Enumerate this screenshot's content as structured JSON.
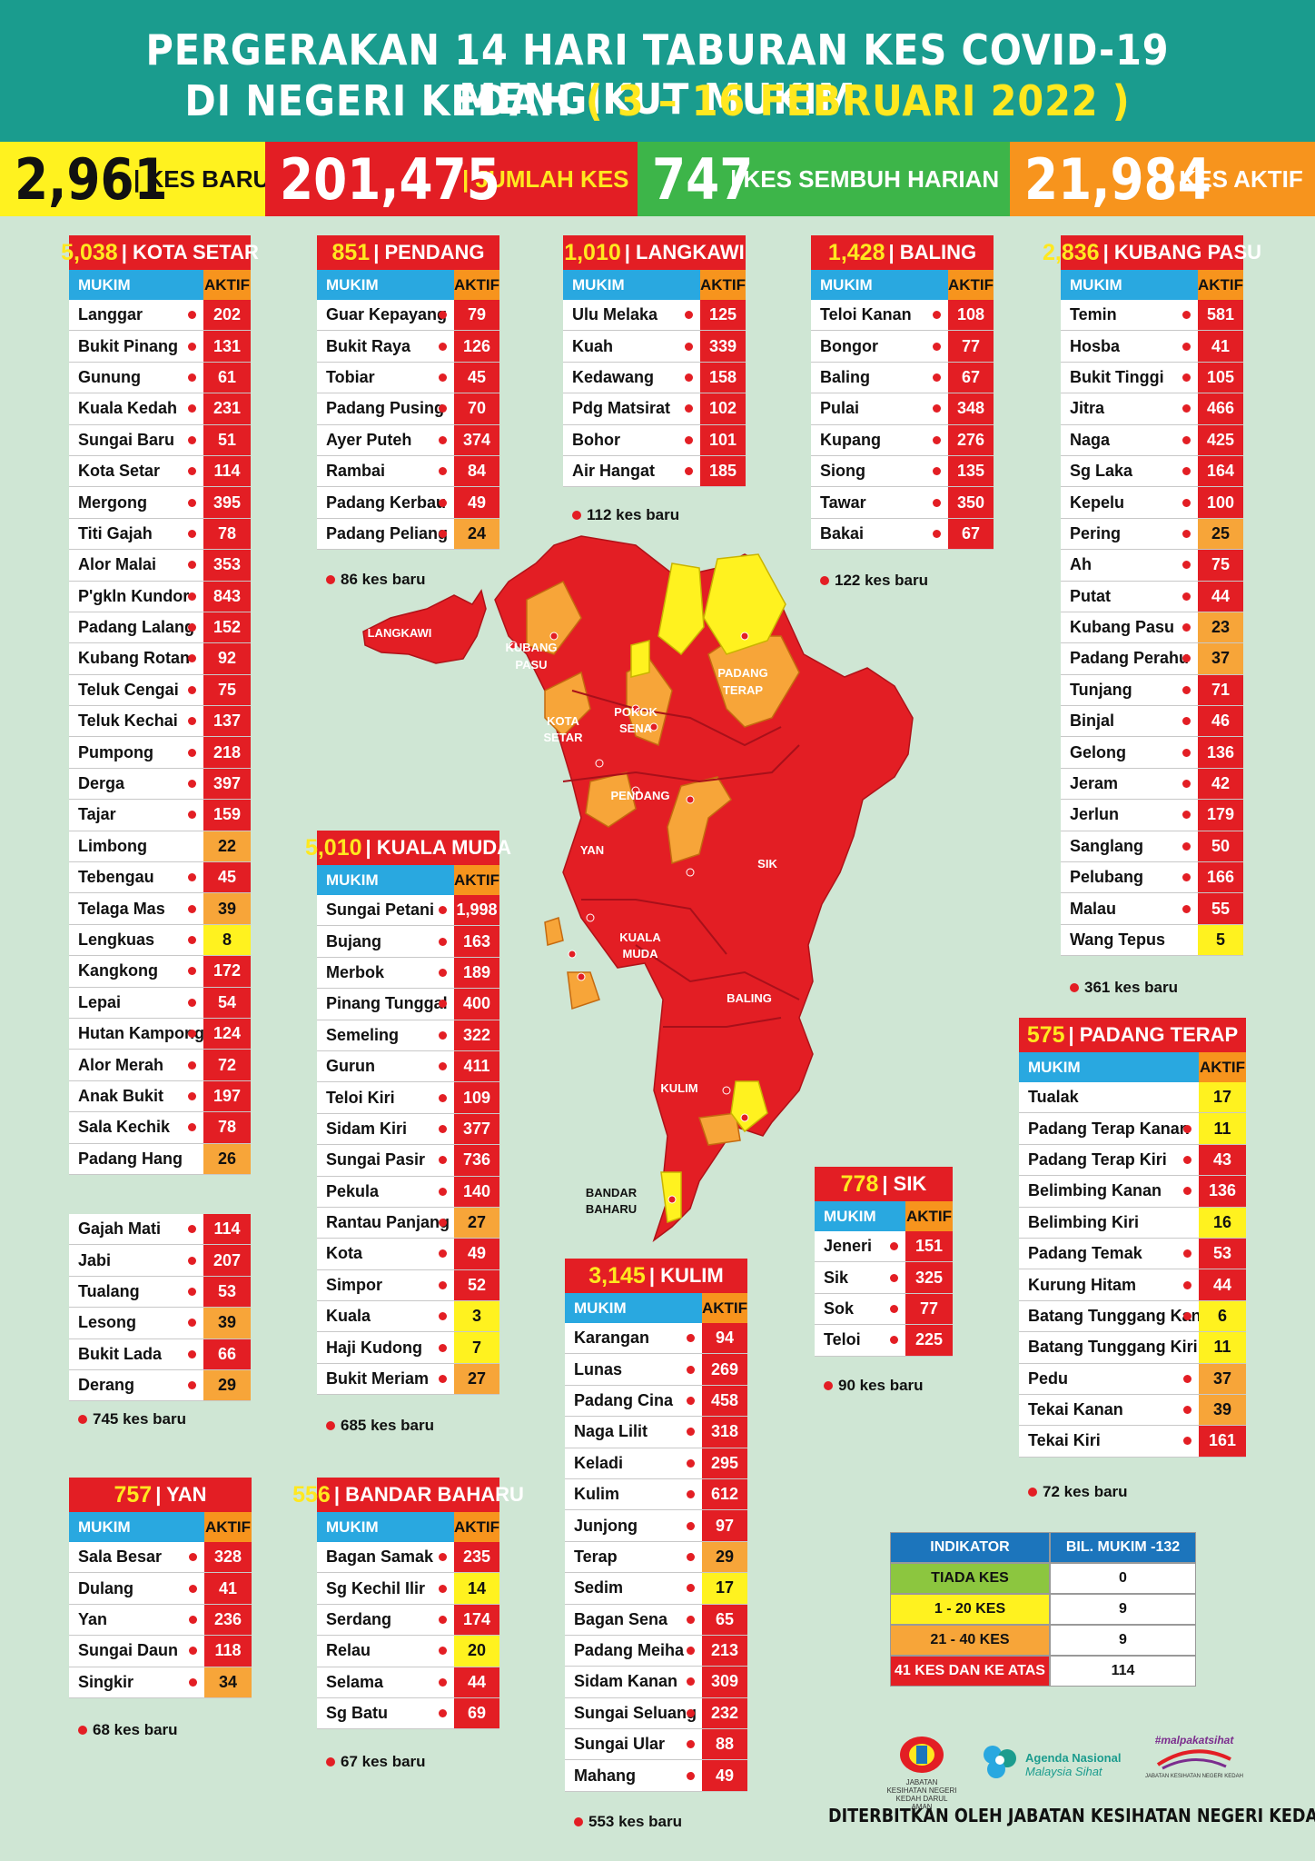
{
  "header": {
    "line1": "PERGERAKAN 14 HARI TABURAN KES COVID-19 MENGIKUT MUKIM",
    "line2_prefix": "DI NEGERI KEDAH",
    "line2_dates": "( 3 – 16 FEBRUARI 2022 )"
  },
  "stats": [
    {
      "value": "2,961",
      "label": "| KES BARU",
      "bg": "#fff21f",
      "fg": "#111111"
    },
    {
      "value": "201,475",
      "label": "| JUMLAH KES",
      "bg": "#e31e24",
      "fg": "#ffffff",
      "lc": "#ffe81f"
    },
    {
      "value": "747",
      "label": "| KES SEMBUH HARIAN",
      "bg": "#3db549",
      "fg": "#ffffff"
    },
    {
      "value": "21,984",
      "label": "| KES AKTIF",
      "bg": "#f7941d",
      "fg": "#ffffff"
    }
  ],
  "col_mukim": "MUKIM",
  "col_aktif": "AKTIF",
  "districts": [
    {
      "id": "kota-setar",
      "total": "5,038",
      "name": "| KOTA SETAR",
      "rows": [
        [
          "Langgar",
          "202",
          "r",
          1
        ],
        [
          "Bukit Pinang",
          "131",
          "r",
          1
        ],
        [
          "Gunung",
          "61",
          "r",
          1
        ],
        [
          "Kuala Kedah",
          "231",
          "r",
          1
        ],
        [
          "Sungai Baru",
          "51",
          "r",
          1
        ],
        [
          "Kota Setar",
          "114",
          "r",
          1
        ],
        [
          "Mergong",
          "395",
          "r",
          1
        ],
        [
          "Titi Gajah",
          "78",
          "r",
          1
        ],
        [
          "Alor Malai",
          "353",
          "r",
          1
        ],
        [
          "P'gkln Kundor",
          "843",
          "r",
          1
        ],
        [
          "Padang Lalang",
          "152",
          "r",
          1
        ],
        [
          "Kubang Rotan",
          "92",
          "r",
          1
        ],
        [
          "Teluk Cengai",
          "75",
          "r",
          1
        ],
        [
          "Teluk Kechai",
          "137",
          "r",
          1
        ],
        [
          "Pumpong",
          "218",
          "r",
          1
        ],
        [
          "Derga",
          "397",
          "r",
          1
        ],
        [
          "Tajar",
          "159",
          "r",
          1
        ],
        [
          "Limbong",
          "22",
          "o",
          0
        ],
        [
          "Tebengau",
          "45",
          "r",
          1
        ],
        [
          "Telaga Mas",
          "39",
          "o",
          1
        ],
        [
          "Lengkuas",
          "8",
          "y",
          1
        ],
        [
          "Kangkong",
          "172",
          "r",
          1
        ],
        [
          "Lepai",
          "54",
          "r",
          1
        ],
        [
          "Hutan Kampong",
          "124",
          "r",
          1
        ],
        [
          "Alor Merah",
          "72",
          "r",
          1
        ],
        [
          "Anak Bukit",
          "197",
          "r",
          1
        ],
        [
          "Sala Kechik",
          "78",
          "r",
          1
        ],
        [
          "Padang Hang",
          "26",
          "o",
          0
        ]
      ]
    },
    {
      "id": "kota-setar-2",
      "rows": [
        [
          "Gajah Mati",
          "114",
          "r",
          1
        ],
        [
          "Jabi",
          "207",
          "r",
          1
        ],
        [
          "Tualang",
          "53",
          "r",
          1
        ],
        [
          "Lesong",
          "39",
          "o",
          1
        ],
        [
          "Bukit Lada",
          "66",
          "r",
          1
        ],
        [
          "Derang",
          "29",
          "o",
          1
        ]
      ],
      "note": "745 kes baru"
    },
    {
      "id": "pendang",
      "total": "851",
      "name": "| PENDANG",
      "rows": [
        [
          "Guar Kepayang",
          "79",
          "r",
          1
        ],
        [
          "Bukit Raya",
          "126",
          "r",
          1
        ],
        [
          "Tobiar",
          "45",
          "r",
          1
        ],
        [
          "Padang Pusing",
          "70",
          "r",
          1
        ],
        [
          "Ayer Puteh",
          "374",
          "r",
          1
        ],
        [
          "Rambai",
          "84",
          "r",
          1
        ],
        [
          "Padang Kerbau",
          "49",
          "r",
          1
        ],
        [
          "Padang Peliang",
          "24",
          "o",
          1
        ]
      ],
      "note": "86 kes baru"
    },
    {
      "id": "langkawi",
      "total": "1,010",
      "name": "| LANGKAWI",
      "rows": [
        [
          "Ulu Melaka",
          "125",
          "r",
          1
        ],
        [
          "Kuah",
          "339",
          "r",
          1
        ],
        [
          "Kedawang",
          "158",
          "r",
          1
        ],
        [
          "Pdg Matsirat",
          "102",
          "r",
          1
        ],
        [
          "Bohor",
          "101",
          "r",
          1
        ],
        [
          "Air Hangat",
          "185",
          "r",
          1
        ]
      ],
      "note": "112 kes baru"
    },
    {
      "id": "baling",
      "total": "1,428",
      "name": "| BALING",
      "rows": [
        [
          "Teloi Kanan",
          "108",
          "r",
          1
        ],
        [
          "Bongor",
          "77",
          "r",
          1
        ],
        [
          "Baling",
          "67",
          "r",
          1
        ],
        [
          "Pulai",
          "348",
          "r",
          1
        ],
        [
          "Kupang",
          "276",
          "r",
          1
        ],
        [
          "Siong",
          "135",
          "r",
          1
        ],
        [
          "Tawar",
          "350",
          "r",
          1
        ],
        [
          "Bakai",
          "67",
          "r",
          1
        ]
      ],
      "note": "122 kes baru"
    },
    {
      "id": "kubang-pasu",
      "total": "2,836",
      "name": "| KUBANG PASU",
      "rows": [
        [
          "Temin",
          "581",
          "r",
          1
        ],
        [
          "Hosba",
          "41",
          "r",
          1
        ],
        [
          "Bukit Tinggi",
          "105",
          "r",
          1
        ],
        [
          "Jitra",
          "466",
          "r",
          1
        ],
        [
          "Naga",
          "425",
          "r",
          1
        ],
        [
          "Sg Laka",
          "164",
          "r",
          1
        ],
        [
          "Kepelu",
          "100",
          "r",
          1
        ],
        [
          "Pering",
          "25",
          "o",
          1
        ],
        [
          "Ah",
          "75",
          "r",
          1
        ],
        [
          "Putat",
          "44",
          "r",
          1
        ],
        [
          "Kubang Pasu",
          "23",
          "o",
          1
        ],
        [
          "Padang Perahu",
          "37",
          "o",
          1
        ],
        [
          "Tunjang",
          "71",
          "r",
          1
        ],
        [
          "Binjal",
          "46",
          "r",
          1
        ],
        [
          "Gelong",
          "136",
          "r",
          1
        ],
        [
          "Jeram",
          "42",
          "r",
          1
        ],
        [
          "Jerlun",
          "179",
          "r",
          1
        ],
        [
          "Sanglang",
          "50",
          "r",
          1
        ],
        [
          "Pelubang",
          "166",
          "r",
          1
        ],
        [
          "Malau",
          "55",
          "r",
          1
        ],
        [
          "Wang Tepus",
          "5",
          "y",
          0
        ]
      ],
      "note": "361 kes baru"
    },
    {
      "id": "kuala-muda",
      "total": "5,010",
      "name": "| KUALA MUDA",
      "rows": [
        [
          "Sungai Petani",
          "1,998",
          "r",
          1
        ],
        [
          "Bujang",
          "163",
          "r",
          1
        ],
        [
          "Merbok",
          "189",
          "r",
          1
        ],
        [
          "Pinang Tunggal",
          "400",
          "r",
          1
        ],
        [
          "Semeling",
          "322",
          "r",
          1
        ],
        [
          "Gurun",
          "411",
          "r",
          1
        ],
        [
          "Teloi Kiri",
          "109",
          "r",
          1
        ],
        [
          "Sidam Kiri",
          "377",
          "r",
          1
        ],
        [
          "Sungai Pasir",
          "736",
          "r",
          1
        ],
        [
          "Pekula",
          "140",
          "r",
          1
        ],
        [
          "Rantau Panjang",
          "27",
          "o",
          1
        ],
        [
          "Kota",
          "49",
          "r",
          1
        ],
        [
          "Simpor",
          "52",
          "r",
          1
        ],
        [
          "Kuala",
          "3",
          "y",
          1
        ],
        [
          "Haji Kudong",
          "7",
          "y",
          1
        ],
        [
          "Bukit Meriam",
          "27",
          "o",
          1
        ]
      ],
      "note": "685 kes baru"
    },
    {
      "id": "padang-terap",
      "total": "575",
      "name": "| PADANG TERAP",
      "rows": [
        [
          "Tualak",
          "17",
          "y",
          0
        ],
        [
          "Padang Terap Kanan",
          "11",
          "y",
          1
        ],
        [
          "Padang Terap Kiri",
          "43",
          "r",
          1
        ],
        [
          "Belimbing Kanan",
          "136",
          "r",
          1
        ],
        [
          "Belimbing Kiri",
          "16",
          "y",
          0
        ],
        [
          "Padang Temak",
          "53",
          "r",
          1
        ],
        [
          "Kurung Hitam",
          "44",
          "r",
          1
        ],
        [
          "Batang Tunggang Kanan",
          "6",
          "y",
          1
        ],
        [
          "Batang Tunggang Kiri",
          "11",
          "y",
          0
        ],
        [
          "Pedu",
          "37",
          "o",
          1
        ],
        [
          "Tekai Kanan",
          "39",
          "o",
          1
        ],
        [
          "Tekai Kiri",
          "161",
          "r",
          1
        ]
      ],
      "note": "72 kes baru"
    },
    {
      "id": "sik",
      "total": "778",
      "name": "| SIK",
      "rows": [
        [
          "Jeneri",
          "151",
          "r",
          1
        ],
        [
          "Sik",
          "325",
          "r",
          1
        ],
        [
          "Sok",
          "77",
          "r",
          1
        ],
        [
          "Teloi",
          "225",
          "r",
          1
        ]
      ],
      "note": "90 kes baru"
    },
    {
      "id": "kulim",
      "total": "3,145",
      "name": "| KULIM",
      "rows": [
        [
          "Karangan",
          "94",
          "r",
          1
        ],
        [
          "Lunas",
          "269",
          "r",
          1
        ],
        [
          "Padang Cina",
          "458",
          "r",
          1
        ],
        [
          "Naga Lilit",
          "318",
          "r",
          1
        ],
        [
          "Keladi",
          "295",
          "r",
          1
        ],
        [
          "Kulim",
          "612",
          "r",
          1
        ],
        [
          "Junjong",
          "97",
          "r",
          1
        ],
        [
          "Terap",
          "29",
          "o",
          1
        ],
        [
          "Sedim",
          "17",
          "y",
          1
        ],
        [
          "Bagan Sena",
          "65",
          "r",
          1
        ],
        [
          "Padang Meiha",
          "213",
          "r",
          1
        ],
        [
          "Sidam Kanan",
          "309",
          "r",
          1
        ],
        [
          "Sungai Seluang",
          "232",
          "r",
          1
        ],
        [
          "Sungai Ular",
          "88",
          "r",
          1
        ],
        [
          "Mahang",
          "49",
          "r",
          1
        ]
      ],
      "note": "553 kes baru"
    },
    {
      "id": "yan",
      "total": "757",
      "name": "| YAN",
      "rows": [
        [
          "Sala Besar",
          "328",
          "r",
          1
        ],
        [
          "Dulang",
          "41",
          "r",
          1
        ],
        [
          "Yan",
          "236",
          "r",
          1
        ],
        [
          "Sungai Daun",
          "118",
          "r",
          1
        ],
        [
          "Singkir",
          "34",
          "o",
          1
        ]
      ],
      "note": "68 kes baru"
    },
    {
      "id": "bandar-baharu",
      "total": "556",
      "name": "| BANDAR BAHARU",
      "rows": [
        [
          "Bagan Samak",
          "235",
          "r",
          1
        ],
        [
          "Sg Kechil Ilir",
          "14",
          "y",
          1
        ],
        [
          "Serdang",
          "174",
          "r",
          1
        ],
        [
          "Relau",
          "20",
          "y",
          1
        ],
        [
          "Selama",
          "44",
          "r",
          1
        ],
        [
          "Sg Batu",
          "69",
          "r",
          1
        ]
      ],
      "note": "67 kes baru"
    }
  ],
  "legend": {
    "h1": "INDIKATOR",
    "h2": "BIL. MUKIM -132",
    "rows": [
      {
        "label": "TIADA KES",
        "value": "0",
        "bg": "#8cc63f"
      },
      {
        "label": "1 - 20 KES",
        "value": "9",
        "bg": "#fff21f"
      },
      {
        "label": "21 - 40 KES",
        "value": "9",
        "bg": "#f7a539"
      },
      {
        "label": "41 KES DAN KE ATAS",
        "value": "114",
        "bg": "#e31e24"
      }
    ]
  },
  "map_labels": [
    "LANGKAWI",
    "KUBANG",
    "PASU",
    "PADANG",
    "TERAP",
    "POKOK",
    "SENA",
    "KOTA",
    "SETAR",
    "PENDANG",
    "YAN",
    "SIK",
    "KUALA",
    "MUDA",
    "BALING",
    "KULIM",
    "BANDAR",
    "BAHARU"
  ],
  "logos": {
    "l1": "JABATAN KESIHATAN NEGERI\nKEDAH DARUL AMAN",
    "l2a": "Agenda Nasional",
    "l2b": "Malaysia Sihat",
    "l3": "#malpakatsihat",
    "l3b": "JABATAN KESIHATAN NEGERI KEDAH"
  },
  "footer": "DITERBITKAN OLEH JABATAN KESIHATAN NEGERI KEDAH"
}
